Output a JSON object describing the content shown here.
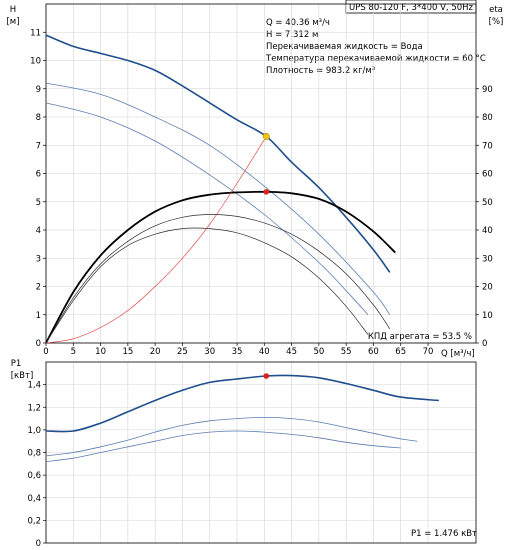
{
  "header": {
    "model_label": "UPS 80-120 F, 3*400 V, 50Hz"
  },
  "info_lines": [
    "Q = 40.36 м³/ч",
    "H = 7.312 м",
    "Перекачиваемая жидкость = Вода",
    "Температура перекачиваемой жидкости = 60 °C",
    "Плотность = 983.2 кг/м³"
  ],
  "chart_data": [
    {
      "type": "line",
      "ylabel_lines": [
        "H",
        "[м]"
      ],
      "y2label_lines": [
        "eta",
        "[%]"
      ],
      "xlabel": "Q [м³/ч]",
      "xlim": [
        0,
        70
      ],
      "ylim": [
        0,
        12
      ],
      "y2lim": [
        0,
        120
      ],
      "x_ticks": [
        0,
        5,
        10,
        15,
        20,
        25,
        30,
        35,
        40,
        45,
        50,
        55,
        60,
        65,
        70
      ],
      "y_ticks": [
        0,
        1,
        2,
        3,
        4,
        5,
        6,
        7,
        8,
        9,
        10,
        11
      ],
      "y2_ticks": [
        0,
        10,
        20,
        30,
        40,
        50,
        60,
        70,
        80,
        90
      ],
      "grid": true,
      "efficiency_label": "КПД агрегата = 53.5 %",
      "series": [
        {
          "axis": "left",
          "color": "#1f4e8c",
          "width": 1.6,
          "x": [
            0,
            5,
            10,
            15,
            20,
            25,
            30,
            35,
            40.36,
            45,
            50,
            55,
            60,
            63
          ],
          "y": [
            10.9,
            10.5,
            10.25,
            10.0,
            9.65,
            9.1,
            8.5,
            7.9,
            7.312,
            6.4,
            5.5,
            4.45,
            3.3,
            2.5
          ]
        },
        {
          "axis": "left",
          "color": "#5a7db0",
          "width": 0.8,
          "x": [
            0,
            10,
            20,
            30,
            40,
            50,
            60,
            63
          ],
          "y": [
            9.2,
            8.8,
            8.0,
            7.0,
            5.55,
            3.85,
            1.8,
            1.0
          ]
        },
        {
          "axis": "left",
          "color": "#5a7db0",
          "width": 0.8,
          "x": [
            0,
            10,
            20,
            30,
            40,
            50,
            55,
            59
          ],
          "y": [
            8.5,
            8.0,
            7.15,
            5.95,
            4.55,
            2.85,
            1.85,
            1.0
          ]
        },
        {
          "axis": "right",
          "color": "#000000",
          "width": 1.8,
          "x": [
            0,
            5,
            10,
            15,
            20,
            25,
            30,
            35,
            40.36,
            45,
            50,
            55,
            60,
            64
          ],
          "y": [
            0,
            18,
            31,
            40,
            46.5,
            50.5,
            52.5,
            53.3,
            53.5,
            53,
            51,
            46.5,
            39.5,
            32
          ]
        },
        {
          "axis": "right",
          "color": "#2a2a2a",
          "width": 0.7,
          "x": [
            0,
            5,
            10,
            15,
            20,
            25,
            30,
            35,
            40,
            45,
            50,
            55,
            60,
            63
          ],
          "y": [
            0,
            16,
            28,
            36,
            41.5,
            44.5,
            45.5,
            44.8,
            42.5,
            38.5,
            32.5,
            24.5,
            13.5,
            5
          ]
        },
        {
          "axis": "right",
          "color": "#2a2a2a",
          "width": 0.7,
          "x": [
            0,
            5,
            10,
            15,
            20,
            25,
            30,
            35,
            40,
            45,
            50,
            55,
            59
          ],
          "y": [
            0,
            15,
            27,
            34.5,
            38.5,
            40.5,
            40.5,
            39,
            35.5,
            30.5,
            23,
            13,
            3
          ]
        },
        {
          "axis": "left",
          "color": "#e03030",
          "width": 0.6,
          "x": [
            0,
            5,
            10,
            15,
            20,
            25,
            30,
            35,
            40.36
          ],
          "y": [
            0,
            0.15,
            0.55,
            1.15,
            2.0,
            3.0,
            4.2,
            5.65,
            7.312
          ]
        }
      ],
      "duty_point_head": {
        "x": 40.36,
        "y": 7.312,
        "color": "#f4c20d"
      },
      "duty_point_eff": {
        "x": 40.36,
        "y": 53.5,
        "color": "#e02020"
      }
    },
    {
      "type": "line",
      "ylabel_lines": [
        "P1",
        "[кВт]"
      ],
      "xlim": [
        0,
        70
      ],
      "ylim": [
        0,
        1.6
      ],
      "y_ticks": [
        0,
        0.2,
        0.4,
        0.6,
        0.8,
        1.0,
        1.2,
        1.4
      ],
      "y_tick_labels": [
        "0",
        "0,2",
        "0,4",
        "0,6",
        "0,8",
        "1,0",
        "1,2",
        "1,4"
      ],
      "grid": true,
      "power_label": "P1 = 1.476 кВт",
      "series": [
        {
          "color": "#1f4e8c",
          "width": 1.6,
          "x": [
            0,
            5,
            10,
            15,
            20,
            25,
            30,
            35,
            40.36,
            45,
            50,
            55,
            60,
            65,
            72
          ],
          "y": [
            0.99,
            0.99,
            1.06,
            1.16,
            1.26,
            1.35,
            1.42,
            1.45,
            1.476,
            1.48,
            1.46,
            1.41,
            1.35,
            1.29,
            1.26
          ]
        },
        {
          "color": "#5a7db0",
          "width": 0.8,
          "x": [
            0,
            5,
            10,
            15,
            20,
            25,
            30,
            35,
            40,
            45,
            50,
            55,
            60,
            65,
            68
          ],
          "y": [
            0.77,
            0.8,
            0.85,
            0.91,
            0.98,
            1.04,
            1.08,
            1.1,
            1.11,
            1.1,
            1.07,
            1.02,
            0.97,
            0.92,
            0.9
          ]
        },
        {
          "color": "#5a7db0",
          "width": 0.8,
          "x": [
            0,
            5,
            10,
            15,
            20,
            25,
            30,
            35,
            40,
            45,
            50,
            55,
            60,
            65
          ],
          "y": [
            0.72,
            0.75,
            0.8,
            0.85,
            0.9,
            0.95,
            0.98,
            0.99,
            0.98,
            0.96,
            0.93,
            0.89,
            0.86,
            0.84
          ]
        }
      ],
      "duty_point": {
        "x": 40.36,
        "y": 1.476,
        "color": "#e02020"
      }
    }
  ]
}
